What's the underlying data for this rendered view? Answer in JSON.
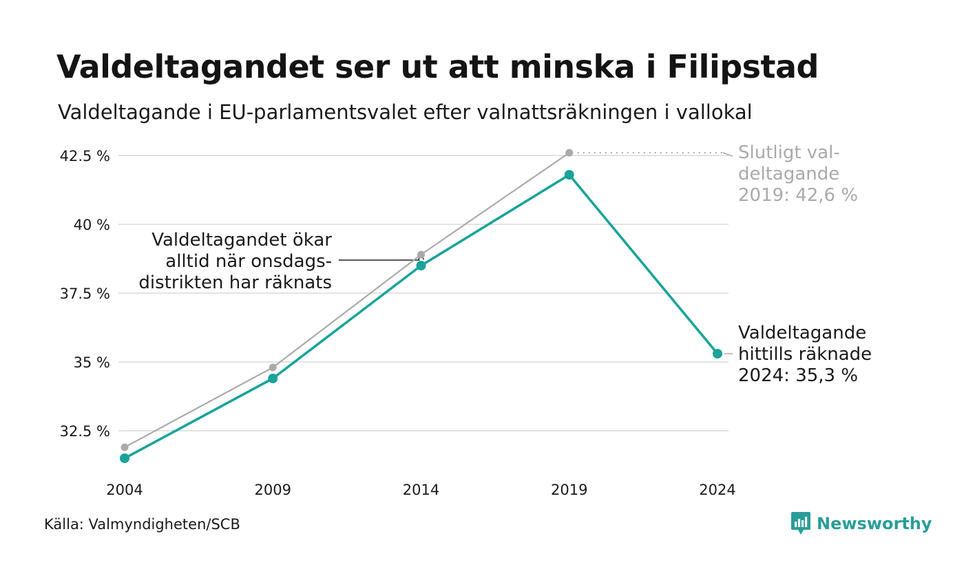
{
  "title": "Valdeltagandet ser ut att minska i Filipstad",
  "subtitle": "Valdeltagande i EU-parlamentsvalet efter valnattsräkningen i vallokal",
  "source": "Källa: Valmyndigheten/SCB",
  "brand": {
    "name": "Newsworthy",
    "icon": "newsworthy-logo-icon",
    "color": "#2a9d98"
  },
  "chart_data": {
    "type": "line",
    "x": [
      2004,
      2009,
      2014,
      2019,
      2024
    ],
    "x_tick_labels": [
      "2004",
      "2009",
      "2014",
      "2019",
      "2024"
    ],
    "ylim": [
      31.0,
      42.8
    ],
    "y_ticks": [
      32.5,
      35,
      37.5,
      40,
      42.5
    ],
    "y_tick_labels": [
      "32.5 %",
      "35 %",
      "37.5 %",
      "40 %",
      "42.5 %"
    ],
    "grid": true,
    "series": [
      {
        "key": "final",
        "color": "#aaaaaa",
        "values": [
          31.9,
          34.8,
          38.9,
          42.6,
          null
        ]
      },
      {
        "key": "election_night",
        "color": "#1aa39a",
        "values": [
          31.5,
          34.4,
          38.5,
          41.8,
          35.3
        ]
      }
    ],
    "annotations": {
      "final_2019": [
        "Slutligt val-",
        "deltagande",
        "2019: 42,6 %"
      ],
      "counted_2024": [
        "Valdeltagande",
        "hittills räknade",
        "2024: 35,3 %"
      ],
      "wednesday": [
        "Valdeltagandet ökar",
        "alltid när onsdags-",
        "distrikten har räknats"
      ]
    }
  }
}
